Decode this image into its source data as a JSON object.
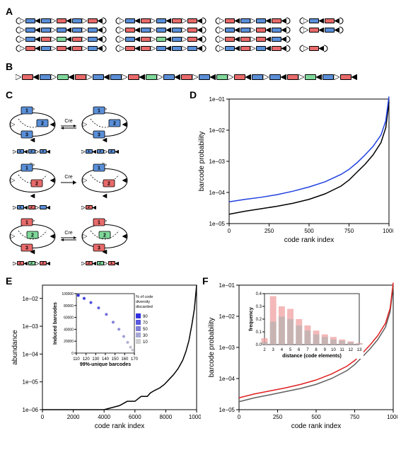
{
  "panels": {
    "A": "A",
    "B": "B",
    "C": "C",
    "D": "D",
    "E": "E",
    "F": "F"
  },
  "colors": {
    "blue": "#5a8fd8",
    "red": "#e86a6a",
    "green": "#7fd89a",
    "white": "#ffffff",
    "black": "#000000",
    "grey": "#808080",
    "series_D_blue": "#2040e0",
    "series_D_black": "#000000",
    "series_E_black": "#000000",
    "series_F_red": "#e02020",
    "series_F_grey": "#606060",
    "grad_low": "#d0d0d0",
    "grad_high": "#3030e0",
    "hist_pink": "#f0a0a0",
    "hist_grey": "#b0b0b0"
  },
  "A": {
    "groups": [
      {
        "x": 0,
        "rows": [
          [
            "cap",
            "t",
            "b",
            "tr",
            "b",
            "t",
            "r",
            "tr",
            "b",
            "t",
            "r",
            "tr",
            "cap"
          ],
          [
            "cap",
            "t",
            "b",
            "tr",
            "b",
            "t",
            "b",
            "tr",
            "b",
            "t",
            "b",
            "tr",
            "cap"
          ],
          [
            "cap",
            "t",
            "b",
            "tr",
            "r",
            "t",
            "g",
            "tr",
            "r",
            "t",
            "b",
            "tr",
            "cap"
          ],
          [
            "cap",
            "t",
            "r",
            "tr",
            "b",
            "t",
            "r",
            "tr",
            "r",
            "t",
            "b",
            "tr",
            "cap"
          ]
        ]
      },
      {
        "x": 1,
        "rows": [
          [
            "cap",
            "t",
            "b",
            "tr",
            "r",
            "t",
            "b",
            "tr",
            "r",
            "t",
            "r",
            "tr",
            "cap"
          ],
          [
            "cap",
            "t",
            "r",
            "tr",
            "b",
            "t",
            "b",
            "tr",
            "b",
            "t",
            "r",
            "tr",
            "cap"
          ],
          [
            "cap",
            "t",
            "b",
            "tr",
            "r",
            "t",
            "g",
            "tr",
            "b",
            "t",
            "r",
            "tr",
            "cap"
          ],
          [
            "cap",
            "t",
            "r",
            "tr",
            "r",
            "t",
            "b",
            "tr",
            "b",
            "t",
            "b",
            "tr",
            "cap"
          ]
        ]
      },
      {
        "x": 2,
        "rows": [
          [
            "cap",
            "t",
            "r",
            "tr",
            "b",
            "t",
            "b",
            "tr",
            "r",
            "tr",
            "cap"
          ],
          [
            "cap",
            "t",
            "b",
            "tr",
            "b",
            "t",
            "r",
            "tr",
            "b",
            "tr",
            "cap"
          ],
          [
            "cap",
            "t",
            "r",
            "tr",
            "r",
            "t",
            "r",
            "tr",
            "b",
            "tr",
            "cap"
          ],
          [
            "cap",
            "t",
            "b",
            "tr",
            "r",
            "t",
            "b",
            "tr",
            "r",
            "tr",
            "cap"
          ]
        ]
      },
      {
        "x": 3,
        "rows": [
          [
            "cap",
            "t",
            "b",
            "tr",
            "r",
            "tr",
            "cap"
          ],
          [
            "cap",
            "t",
            "r",
            "tr",
            "b",
            "tr",
            "cap"
          ],
          [],
          [
            "cap",
            "t",
            "r",
            "tr",
            "cap"
          ]
        ]
      }
    ]
  },
  "B": {
    "row": [
      "t",
      "r",
      "tr",
      "b",
      "t",
      "g",
      "tr",
      "r",
      "t",
      "b",
      "tr",
      "b",
      "t",
      "r",
      "tr",
      "g",
      "t",
      "b",
      "tr",
      "r",
      "t",
      "b",
      "tr",
      "g",
      "t",
      "r",
      "tr",
      "b",
      "t",
      "b",
      "tr",
      "r",
      "t",
      "g",
      "tr",
      "b",
      "t",
      "r",
      "tr"
    ]
  },
  "C": {
    "cre_label": "Cre",
    "rows": [
      {
        "bidir": true,
        "left_nodes": [
          {
            "n": "1",
            "c": "b",
            "x": 30,
            "y": 10
          },
          {
            "n": "2",
            "c": "b",
            "x": 52,
            "y": 28
          },
          {
            "n": "3",
            "c": "b",
            "x": 30,
            "y": 44
          }
        ],
        "right_nodes": [
          {
            "n": "1",
            "c": "b",
            "x": 30,
            "y": 10
          },
          {
            "n": "2",
            "c": "b",
            "x": 52,
            "y": 28
          },
          {
            "n": "3",
            "c": "b",
            "x": 30,
            "y": 44
          }
        ],
        "left_mini": [
          "t",
          "b1",
          "tr",
          "b2",
          "t",
          "b3",
          "tr"
        ],
        "right_mini": [
          "t",
          "b1",
          "tr",
          "b3",
          "t",
          "b2",
          "tr"
        ]
      },
      {
        "bidir": false,
        "left_nodes": [
          {
            "n": "1",
            "c": "b",
            "x": 30,
            "y": 12
          },
          {
            "n": "2",
            "c": "r",
            "x": 44,
            "y": 34
          }
        ],
        "right_nodes": [
          {
            "n": "1",
            "c": "b",
            "x": 30,
            "y": 12
          },
          {
            "n": "2",
            "c": "r",
            "x": 44,
            "y": 34
          }
        ],
        "left_mini": [
          "t",
          "b1",
          "tr",
          "r2",
          "t",
          "b",
          "tr"
        ],
        "right_mini": [
          "t",
          "r2",
          "tr"
        ]
      },
      {
        "bidir": true,
        "left_nodes": [
          {
            "n": "1",
            "c": "r",
            "x": 30,
            "y": 10
          },
          {
            "n": "2",
            "c": "g",
            "x": 38,
            "y": 28
          },
          {
            "n": "3",
            "c": "r",
            "x": 30,
            "y": 46
          }
        ],
        "right_nodes": [
          {
            "n": "1",
            "c": "r",
            "x": 30,
            "y": 10
          },
          {
            "n": "2",
            "c": "g",
            "x": 38,
            "y": 28
          },
          {
            "n": "3",
            "c": "r",
            "x": 30,
            "y": 46
          }
        ],
        "left_mini": [
          "t",
          "r1",
          "tr",
          "g2",
          "t",
          "r3",
          "tr"
        ],
        "right_mini": [
          "t",
          "r3",
          "tr",
          "g2",
          "t",
          "r1",
          "tr"
        ]
      }
    ]
  },
  "D": {
    "xlabel": "code rank index",
    "ylabel": "barcode probability",
    "xlim": [
      0,
      1000
    ],
    "xticks": [
      0,
      250,
      500,
      750,
      1000
    ],
    "ylim": [
      1e-05,
      0.1
    ],
    "yticks": [
      "1e-05",
      "1e-04",
      "1e-03",
      "1e-02",
      "1e-01"
    ],
    "series": [
      {
        "color": "series_D_black",
        "pts": [
          [
            0,
            2e-05
          ],
          [
            100,
            2.5e-05
          ],
          [
            200,
            3e-05
          ],
          [
            300,
            3.6e-05
          ],
          [
            400,
            4.5e-05
          ],
          [
            500,
            6e-05
          ],
          [
            600,
            9e-05
          ],
          [
            700,
            0.00016
          ],
          [
            750,
            0.00025
          ],
          [
            800,
            0.00045
          ],
          [
            850,
            0.0008
          ],
          [
            900,
            0.0016
          ],
          [
            950,
            0.004
          ],
          [
            980,
            0.012
          ],
          [
            1000,
            0.08
          ]
        ]
      },
      {
        "color": "series_D_blue",
        "pts": [
          [
            0,
            5e-05
          ],
          [
            100,
            6e-05
          ],
          [
            200,
            7e-05
          ],
          [
            300,
            8.5e-05
          ],
          [
            400,
            0.00011
          ],
          [
            500,
            0.00015
          ],
          [
            600,
            0.00022
          ],
          [
            700,
            0.00038
          ],
          [
            750,
            0.00055
          ],
          [
            800,
            0.0009
          ],
          [
            850,
            0.0016
          ],
          [
            900,
            0.003
          ],
          [
            950,
            0.007
          ],
          [
            980,
            0.02
          ],
          [
            1000,
            0.12
          ]
        ]
      }
    ]
  },
  "E": {
    "xlabel": "code rank index",
    "ylabel": "abundance",
    "xlim": [
      0,
      10000
    ],
    "xticks": [
      0,
      2000,
      4000,
      6000,
      8000,
      10000
    ],
    "ylim": [
      1e-06,
      0.03
    ],
    "yticks": [
      "1e-06",
      "1e-05",
      "1e-04",
      "1e-03",
      "1e-02"
    ],
    "series": [
      {
        "color": "series_E_black",
        "pts": [
          [
            0,
            1e-06
          ],
          [
            4000,
            1e-06
          ],
          [
            5000,
            1.4e-06
          ],
          [
            5500,
            2e-06
          ],
          [
            6000,
            2e-06
          ],
          [
            6400,
            3e-06
          ],
          [
            6800,
            3e-06
          ],
          [
            7000,
            4e-06
          ],
          [
            7300,
            5e-06
          ],
          [
            7600,
            6e-06
          ],
          [
            7900,
            8e-06
          ],
          [
            8200,
            1.2e-05
          ],
          [
            8500,
            1.8e-05
          ],
          [
            8800,
            3e-05
          ],
          [
            9100,
            6e-05
          ],
          [
            9300,
            0.00012
          ],
          [
            9500,
            0.0003
          ],
          [
            9700,
            0.0012
          ],
          [
            9850,
            0.004
          ],
          [
            9950,
            0.015
          ],
          [
            10000,
            0.03
          ]
        ]
      }
    ],
    "inset": {
      "xlabel": "99%-unique barcodes",
      "ylabel": "Induced barcodes",
      "legend_title": "% of code\ndiversity\ndiscarded",
      "legend_vals": [
        "90",
        "70",
        "50",
        "30",
        "10"
      ],
      "xlim": [
        110,
        170
      ],
      "xticks": [
        110,
        120,
        130,
        140,
        150,
        160,
        170
      ],
      "ylim": [
        0,
        100000
      ],
      "yticks": [
        "0",
        "20000",
        "40000",
        "60000",
        "80000",
        "100000"
      ],
      "pts": [
        [
          168,
          5000,
          0.05
        ],
        [
          166,
          10000,
          0.1
        ],
        [
          163,
          18000,
          0.2
        ],
        [
          159,
          28000,
          0.3
        ],
        [
          154,
          40000,
          0.4
        ],
        [
          148,
          52000,
          0.5
        ],
        [
          141,
          65000,
          0.6
        ],
        [
          133,
          76000,
          0.7
        ],
        [
          125,
          85000,
          0.8
        ],
        [
          118,
          92000,
          0.9
        ],
        [
          112,
          97000,
          1.0
        ]
      ]
    }
  },
  "F": {
    "xlabel": "code rank index",
    "ylabel": "barcode probability",
    "xlim": [
      0,
      1000
    ],
    "xticks": [
      0,
      250,
      500,
      750,
      1000
    ],
    "ylim": [
      1e-05,
      0.1
    ],
    "yticks": [
      "1e-05",
      "1e-04",
      "1e-03",
      "1e-02",
      "1e-01"
    ],
    "series": [
      {
        "color": "series_F_grey",
        "pts": [
          [
            0,
            1.8e-05
          ],
          [
            100,
            2.4e-05
          ],
          [
            200,
            3e-05
          ],
          [
            300,
            3.8e-05
          ],
          [
            400,
            4.8e-05
          ],
          [
            500,
            6.5e-05
          ],
          [
            600,
            0.0001
          ],
          [
            700,
            0.00018
          ],
          [
            750,
            0.00028
          ],
          [
            800,
            0.0005
          ],
          [
            850,
            0.0009
          ],
          [
            900,
            0.0018
          ],
          [
            950,
            0.0045
          ],
          [
            980,
            0.014
          ],
          [
            1000,
            0.09
          ]
        ]
      },
      {
        "color": "series_F_red",
        "pts": [
          [
            0,
            2.4e-05
          ],
          [
            100,
            3.2e-05
          ],
          [
            200,
            4e-05
          ],
          [
            300,
            5e-05
          ],
          [
            400,
            6.5e-05
          ],
          [
            500,
            9e-05
          ],
          [
            600,
            0.00014
          ],
          [
            700,
            0.00025
          ],
          [
            750,
            0.00038
          ],
          [
            800,
            0.00065
          ],
          [
            850,
            0.0012
          ],
          [
            900,
            0.0024
          ],
          [
            950,
            0.006
          ],
          [
            980,
            0.018
          ],
          [
            1000,
            0.12
          ]
        ]
      }
    ],
    "inset": {
      "xlabel": "distance (code elements)",
      "ylabel": "frequency",
      "xlim": [
        2,
        13
      ],
      "xticks": [
        2,
        3,
        4,
        5,
        6,
        7,
        8,
        9,
        10,
        11,
        12,
        13
      ],
      "ylim": [
        0,
        0.4
      ],
      "yticks": [
        "0.0",
        "0.1",
        "0.2",
        "0.3",
        "0.4"
      ],
      "bars": [
        {
          "x": 2,
          "pink": 0.05,
          "grey": 0.02
        },
        {
          "x": 3,
          "pink": 0.38,
          "grey": 0.18
        },
        {
          "x": 4,
          "pink": 0.3,
          "grey": 0.22
        },
        {
          "x": 5,
          "pink": 0.28,
          "grey": 0.2
        },
        {
          "x": 6,
          "pink": 0.2,
          "grey": 0.15
        },
        {
          "x": 7,
          "pink": 0.15,
          "grey": 0.11
        },
        {
          "x": 8,
          "pink": 0.11,
          "grey": 0.08
        },
        {
          "x": 9,
          "pink": 0.08,
          "grey": 0.06
        },
        {
          "x": 10,
          "pink": 0.06,
          "grey": 0.04
        },
        {
          "x": 11,
          "pink": 0.04,
          "grey": 0.03
        },
        {
          "x": 12,
          "pink": 0.025,
          "grey": 0.018
        },
        {
          "x": 13,
          "pink": 0.012,
          "grey": 0.008
        }
      ]
    }
  }
}
